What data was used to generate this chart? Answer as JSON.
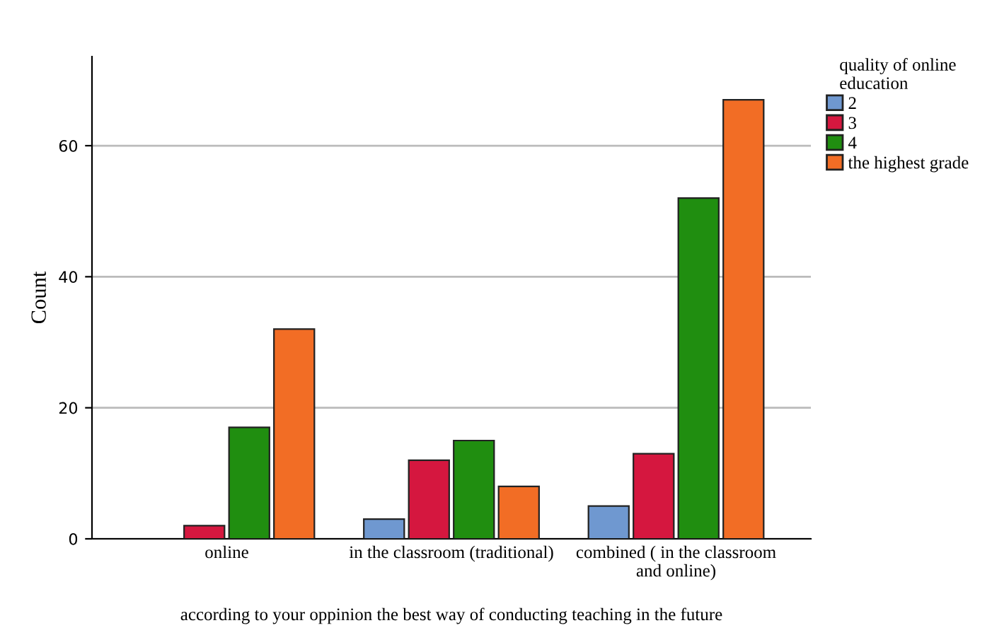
{
  "chart_data": {
    "type": "bar",
    "xlabel": "according to your oppinion the best way of conducting teaching in the future",
    "ylabel": "Count",
    "legend_title": "quality of online\neducation",
    "categories": [
      "online",
      "in the classroom (traditional)",
      "combined ( in the classroom\nand online)"
    ],
    "series": [
      {
        "name": "2",
        "color": "#6f98d0",
        "values": [
          null,
          3,
          5
        ]
      },
      {
        "name": "3",
        "color": "#d5173f",
        "values": [
          2,
          12,
          13
        ]
      },
      {
        "name": "4",
        "color": "#208e10",
        "values": [
          17,
          15,
          52
        ]
      },
      {
        "name": "the highest grade",
        "color": "#f26d25",
        "values": [
          32,
          8,
          67
        ]
      }
    ],
    "ylim": [
      0,
      73.6
    ],
    "yticks": [
      0,
      20,
      40,
      60
    ],
    "grid": "y",
    "legend": "top right"
  }
}
